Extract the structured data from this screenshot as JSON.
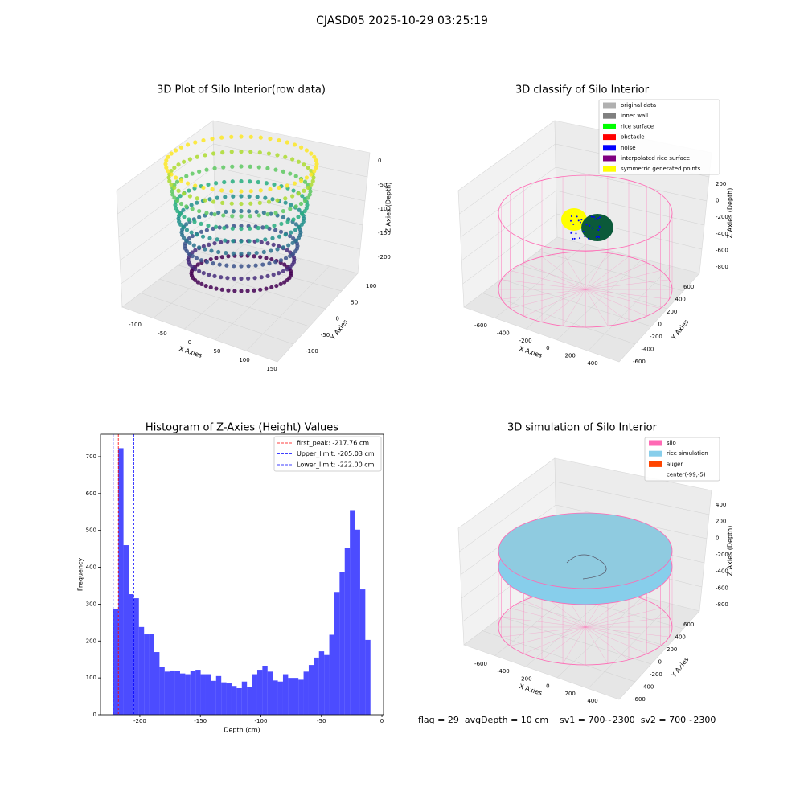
{
  "title": "CJASD05 2025-10-29 03:25:19",
  "chart_data": [
    {
      "type": "scatter3d",
      "title": "3D Plot of Silo Interior(row data)",
      "xlabel": "X Axies",
      "ylabel": "Y Axies",
      "zlabel": "Z Axies (Depth)",
      "xticks": [
        -100,
        -50,
        0,
        50,
        100,
        150
      ],
      "yticks": [
        -100,
        -50,
        0,
        50,
        100
      ],
      "zticks": [
        0,
        -50,
        -100,
        -150,
        -200
      ]
    },
    {
      "type": "scatter3d",
      "title": "3D classify of Silo Interior",
      "xlabel": "X Axies",
      "ylabel": "Y Axies",
      "zlabel": "Z Axies (Depth)",
      "xticks": [
        -600,
        -400,
        -200,
        0,
        200,
        400
      ],
      "yticks": [
        -600,
        -400,
        -200,
        0,
        200,
        400,
        600
      ],
      "zticks": [
        200,
        0,
        -200,
        -400,
        -600,
        -800
      ],
      "legend": [
        {
          "name": "original data",
          "color": "#b0b0b0"
        },
        {
          "name": "inner wall",
          "color": "#808080"
        },
        {
          "name": "rice surface",
          "color": "#00ff00"
        },
        {
          "name": "obstacle",
          "color": "#ff0000"
        },
        {
          "name": "noise",
          "color": "#0000ff"
        },
        {
          "name": "interpolated rice surface",
          "color": "#800080"
        },
        {
          "name": "symmetric generated points",
          "color": "#ffff00"
        }
      ]
    },
    {
      "type": "histogram",
      "title": "Histogram of Z-Axies (Height) Values",
      "xlabel": "Depth (cm)",
      "ylabel": "Frequency",
      "color": "#0000ff",
      "bins": [
        -222,
        -217.75,
        -213.5,
        -209.25,
        -205,
        -200.75,
        -196.5,
        -192.25,
        -188,
        -183.75,
        -179.5,
        -175.25,
        -171,
        -166.75,
        -162.5,
        -158.25,
        -154,
        -149.75,
        -145.5,
        -141.25,
        -137,
        -132.75,
        -128.5,
        -124.25,
        -120,
        -115.75,
        -111.5,
        -107.25,
        -103,
        -98.75,
        -94.5,
        -90.25,
        -86,
        -81.75,
        -77.5,
        -73.25,
        -69,
        -64.75,
        -60.5,
        -56.25,
        -52,
        -47.75,
        -43.5,
        -39.25,
        -35,
        -30.75,
        -26.5,
        -22.25,
        -18,
        -13.75,
        -9.5
      ],
      "counts": [
        286,
        723,
        460,
        327,
        316,
        238,
        218,
        220,
        170,
        130,
        117,
        120,
        118,
        112,
        110,
        118,
        122,
        110,
        110,
        92,
        105,
        88,
        85,
        78,
        72,
        90,
        75,
        110,
        122,
        133,
        117,
        93,
        90,
        110,
        100,
        100,
        95,
        117,
        135,
        155,
        172,
        162,
        217,
        333,
        388,
        452,
        555,
        502,
        340,
        203
      ],
      "xlim": [
        -232.5,
        1.3
      ],
      "ylim": [
        0,
        761
      ],
      "xticks": [
        -200,
        -150,
        -100,
        -50,
        0
      ],
      "yticks": [
        0,
        100,
        200,
        300,
        400,
        500,
        600,
        700
      ],
      "lines": [
        {
          "name": "first_peak: -217.76 cm",
          "value": -217.76,
          "color": "#ff0000"
        },
        {
          "name": "Upper_limit: -205.03 cm",
          "value": -205.03,
          "color": "#0000ff"
        },
        {
          "name": "Lower_limit: -222.00 cm",
          "value": -222.0,
          "color": "#0000ff"
        }
      ]
    },
    {
      "type": "scatter3d",
      "title": "3D simulation of Silo Interior",
      "xlabel": "X Axies",
      "ylabel": "Y Axies",
      "zlabel": "Z Axies (Depth)",
      "xticks": [
        -600,
        -400,
        -200,
        0,
        200,
        400
      ],
      "yticks": [
        -600,
        -400,
        -200,
        0,
        200,
        400,
        600
      ],
      "zticks": [
        400,
        200,
        0,
        -200,
        -400,
        -600,
        -800
      ],
      "legend": [
        {
          "name": "silo",
          "color": "#ff69b4"
        },
        {
          "name": "rice simulation",
          "color": "#87ceeb"
        },
        {
          "name": "auger",
          "color": "#ff4500"
        },
        {
          "name": "center(-99,-5)",
          "color": "#ffffff"
        }
      ]
    }
  ],
  "footer": "flag = 29  avgDepth = 10 cm    sv1 = 700~2300  sv2 = 700~2300"
}
